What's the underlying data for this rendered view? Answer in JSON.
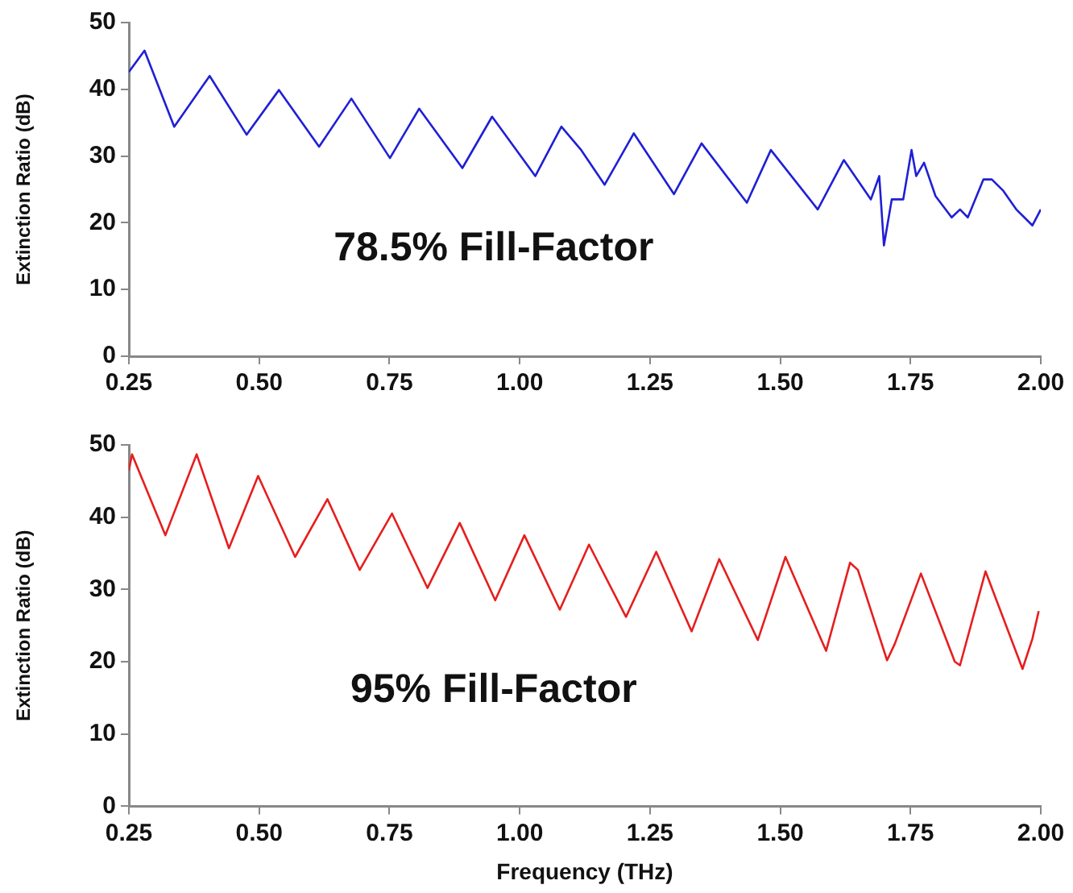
{
  "chart_data": [
    {
      "type": "line",
      "ylabel": "Extinction Ratio (dB)",
      "annotations": [
        "78.5% Fill-Factor"
      ],
      "xlim": [
        0.25,
        2.0
      ],
      "xticks": [
        {
          "value": 0.25,
          "label": "0.25"
        },
        {
          "value": 0.5,
          "label": "0.50"
        },
        {
          "value": 0.75,
          "label": "0.75"
        },
        {
          "value": 1.0,
          "label": "1.00"
        },
        {
          "value": 1.25,
          "label": "1.25"
        },
        {
          "value": 1.5,
          "label": "1.50"
        },
        {
          "value": 1.75,
          "label": "1.75"
        },
        {
          "value": 2.0,
          "label": "2.00"
        }
      ],
      "ylim": [
        0,
        50
      ],
      "yticks": [
        0,
        10,
        20,
        30,
        40,
        50
      ],
      "grid": false,
      "legend": false,
      "marker": "none",
      "line_style": "solid",
      "series": [
        {
          "color": "#1f1fd6",
          "x": [
            0.25,
            0.28,
            0.337,
            0.405,
            0.476,
            0.538,
            0.615,
            0.677,
            0.751,
            0.807,
            0.89,
            0.947,
            1.03,
            1.08,
            1.117,
            1.163,
            1.219,
            1.296,
            1.349,
            1.436,
            1.482,
            1.572,
            1.622,
            1.674,
            1.69,
            1.699,
            1.714,
            1.736,
            1.752,
            1.761,
            1.776,
            1.798,
            1.829,
            1.845,
            1.86,
            1.89,
            1.906,
            1.928,
            1.953,
            1.984,
            2.0
          ],
          "values": [
            42.6,
            45.8,
            34.4,
            42,
            33.2,
            39.9,
            31.4,
            38.6,
            29.7,
            37.1,
            28.2,
            35.9,
            27,
            34.4,
            31,
            25.7,
            33.4,
            24.3,
            31.9,
            23,
            30.9,
            22,
            29.4,
            23.5,
            27,
            16.6,
            23.5,
            23.5,
            30.9,
            27,
            29,
            24,
            20.8,
            22,
            20.8,
            26.5,
            26.5,
            24.8,
            22,
            19.6,
            22
          ]
        }
      ]
    },
    {
      "type": "line",
      "xlabel": "Frequency (THz)",
      "ylabel": "Extinction Ratio (dB)",
      "annotations": [
        "95% Fill-Factor"
      ],
      "xlim": [
        0.25,
        2.0
      ],
      "xticks": [
        {
          "value": 0.25,
          "label": "0.25"
        },
        {
          "value": 0.5,
          "label": "0.50"
        },
        {
          "value": 0.75,
          "label": "0.75"
        },
        {
          "value": 1.0,
          "label": "1.00"
        },
        {
          "value": 1.25,
          "label": "1.25"
        },
        {
          "value": 1.5,
          "label": "1.50"
        },
        {
          "value": 1.75,
          "label": "1.75"
        },
        {
          "value": 2.0,
          "label": "2.00"
        }
      ],
      "ylim": [
        0,
        50
      ],
      "yticks": [
        0,
        10,
        20,
        30,
        40,
        50
      ],
      "grid": false,
      "legend": false,
      "marker": "none",
      "line_style": "solid",
      "series": [
        {
          "color": "#e61e1e",
          "x": [
            0.25,
            0.256,
            0.32,
            0.38,
            0.442,
            0.498,
            0.569,
            0.631,
            0.693,
            0.755,
            0.823,
            0.885,
            0.953,
            1.009,
            1.077,
            1.133,
            1.204,
            1.262,
            1.33,
            1.383,
            1.457,
            1.51,
            1.588,
            1.634,
            1.649,
            1.705,
            1.72,
            1.77,
            1.835,
            1.845,
            1.894,
            1.965,
            1.984,
            1.996
          ],
          "values": [
            46.5,
            48.7,
            37.5,
            48.7,
            35.7,
            45.7,
            34.5,
            42.5,
            32.7,
            40.5,
            30.2,
            39.2,
            28.5,
            37.5,
            27.2,
            36.2,
            26.2,
            35.2,
            24.2,
            34.2,
            23,
            34.5,
            21.5,
            33.7,
            32.7,
            20.2,
            22.5,
            32.2,
            20,
            19.5,
            32.5,
            19,
            23.2,
            27
          ]
        }
      ]
    }
  ]
}
